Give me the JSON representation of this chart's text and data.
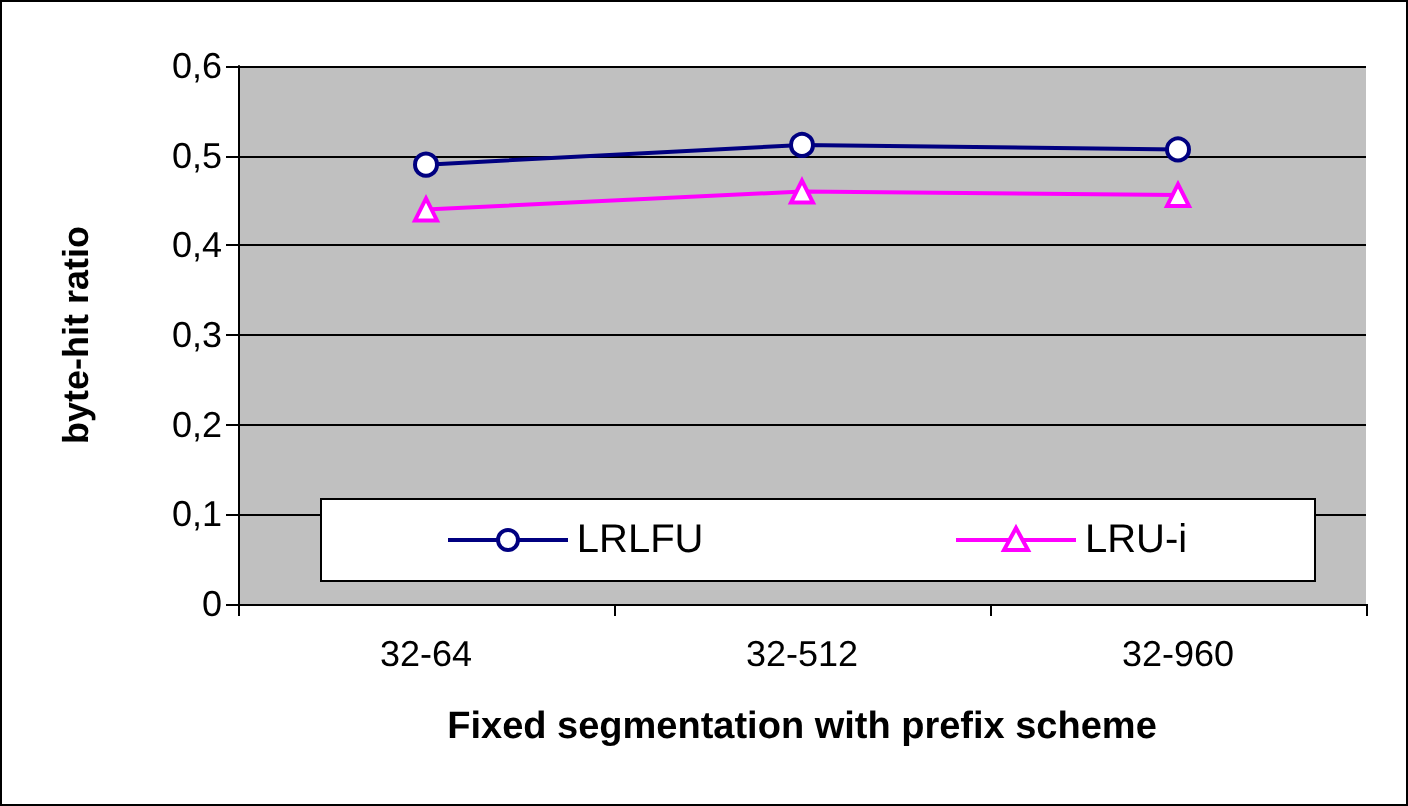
{
  "chart_data": {
    "type": "line",
    "xlabel": "Fixed segmentation with prefix scheme",
    "ylabel": "byte-hit ratio",
    "categories": [
      "32-64",
      "32-512",
      "32-960"
    ],
    "series": [
      {
        "name": "LRLFU",
        "color": "#000080",
        "marker": "circle",
        "values": [
          0.49,
          0.512,
          0.507
        ]
      },
      {
        "name": "LRU-i",
        "color": "#ff00ff",
        "marker": "triangle",
        "values": [
          0.44,
          0.46,
          0.456
        ]
      }
    ],
    "ylim": [
      0,
      0.6
    ],
    "yticks": [
      0,
      {
        "value": 0.1,
        "label": "0,1"
      },
      {
        "value": 0.2,
        "label": "0,2"
      },
      {
        "value": 0.3,
        "label": "0,3"
      },
      {
        "value": 0.4,
        "label": "0,4"
      },
      {
        "value": 0.5,
        "label": "0,5"
      },
      {
        "value": 0.6,
        "label": "0,6"
      }
    ],
    "grid": "y",
    "legend": "bottom"
  }
}
